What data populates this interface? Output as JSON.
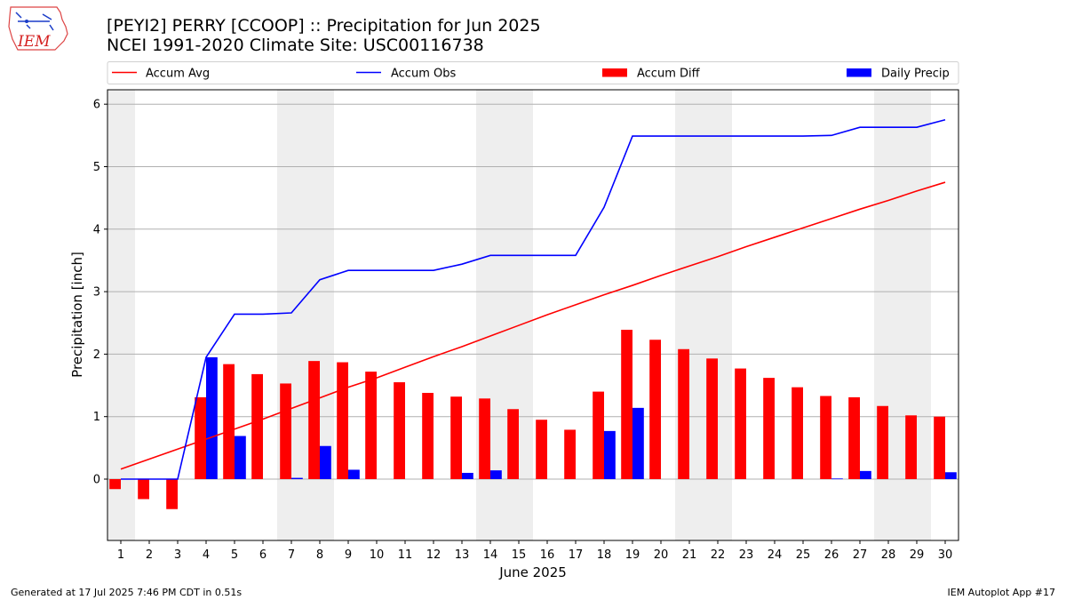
{
  "header": {
    "title": "[PEYI2] PERRY [CCOOP] :: Precipitation for Jun 2025",
    "subtitle": "NCEI 1991-2020 Climate Site: USC00116738",
    "logo_text": "IEM"
  },
  "footer": {
    "left": "Generated at 17 Jul 2025 7:46 PM CDT in 0.51s",
    "right": "IEM Autoplot App #17"
  },
  "colors": {
    "avg": "#ff0000",
    "obs": "#0000ff",
    "diff": "#ff0000",
    "daily": "#0000ff",
    "weekend_shade": "#eeeeee",
    "grid": "#b0b0b0"
  },
  "chart_data": {
    "type": "bar",
    "xlabel": "June 2025",
    "ylabel": "Precipitation [inch]",
    "ylim": [
      -1.0,
      6.25
    ],
    "yticks": [
      0,
      1,
      2,
      3,
      4,
      5,
      6
    ],
    "grid": true,
    "legend_position": "top",
    "x": [
      1,
      2,
      3,
      4,
      5,
      6,
      7,
      8,
      9,
      10,
      11,
      12,
      13,
      14,
      15,
      16,
      17,
      18,
      19,
      20,
      21,
      22,
      23,
      24,
      25,
      26,
      27,
      28,
      29,
      30
    ],
    "shaded_days": [
      1,
      7,
      8,
      14,
      15,
      21,
      22,
      28,
      29
    ],
    "series": [
      {
        "name": "Accum Avg",
        "kind": "line",
        "values": [
          0.16,
          0.32,
          0.48,
          0.64,
          0.8,
          0.96,
          1.13,
          1.3,
          1.47,
          1.62,
          1.79,
          1.96,
          2.12,
          2.29,
          2.46,
          2.63,
          2.79,
          2.95,
          3.1,
          3.26,
          3.41,
          3.56,
          3.72,
          3.87,
          4.02,
          4.17,
          4.32,
          4.46,
          4.61,
          4.75
        ]
      },
      {
        "name": "Accum Obs",
        "kind": "line",
        "values": [
          0.0,
          0.0,
          0.0,
          1.95,
          2.64,
          2.64,
          2.66,
          3.19,
          3.34,
          3.34,
          3.34,
          3.34,
          3.44,
          3.58,
          3.58,
          3.58,
          3.58,
          4.35,
          5.49,
          5.49,
          5.49,
          5.49,
          5.49,
          5.49,
          5.49,
          5.5,
          5.63,
          5.63,
          5.63,
          5.75
        ]
      },
      {
        "name": "Accum Diff",
        "kind": "bar",
        "values": [
          -0.16,
          -0.32,
          -0.48,
          1.31,
          1.84,
          1.68,
          1.53,
          1.89,
          1.87,
          1.72,
          1.55,
          1.38,
          1.32,
          1.29,
          1.12,
          0.95,
          0.79,
          1.4,
          2.39,
          2.23,
          2.08,
          1.93,
          1.77,
          1.62,
          1.47,
          1.33,
          1.31,
          1.17,
          1.02,
          1.0
        ]
      },
      {
        "name": "Daily Precip",
        "kind": "bar",
        "values": [
          0,
          0,
          0,
          1.95,
          0.69,
          0,
          0.02,
          0.53,
          0.15,
          0,
          0,
          0,
          0.1,
          0.14,
          0,
          0,
          0,
          0.77,
          1.14,
          0,
          0,
          0,
          0,
          0,
          0,
          0.01,
          0.13,
          0,
          0,
          0.11
        ]
      }
    ]
  }
}
